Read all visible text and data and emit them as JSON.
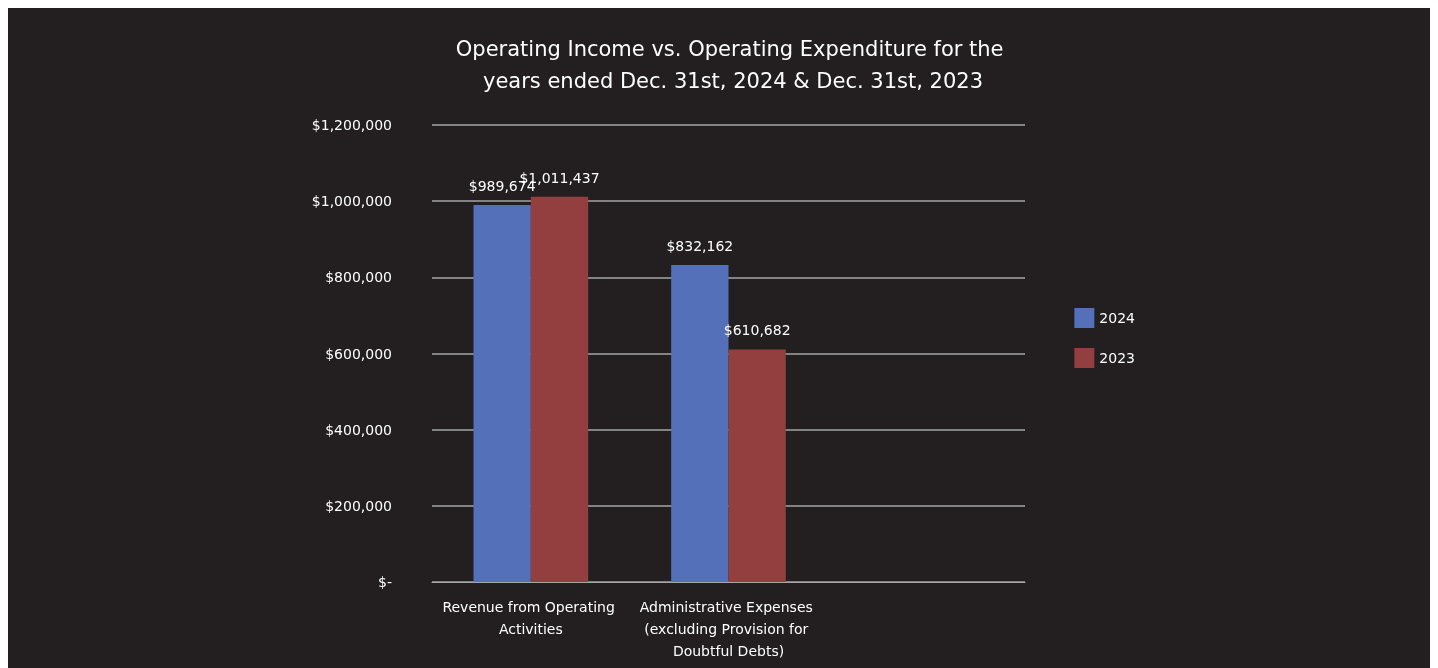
{
  "chart_data": {
    "type": "bar",
    "title": "Operating Income vs. Operating Expenditure for the years ended Dec. 31st, 2024 & Dec. 31st, 2023",
    "categories": [
      "Revenue from Operating Activities",
      "Administrative Expenses (excluding Provision for Doubtful Debts)",
      null
    ],
    "series": [
      {
        "name": "2024",
        "color": "#5470b8",
        "values": [
          989674,
          832162,
          null
        ],
        "value_labels": [
          "$989,674",
          "$832,162",
          null
        ]
      },
      {
        "name": "2023",
        "color": "#943f3f",
        "values": [
          1011437,
          610682,
          null
        ],
        "value_labels": [
          "$1,011,437",
          "$610,682",
          null
        ]
      }
    ],
    "ylim": [
      0,
      1200000
    ],
    "yticks": [
      {
        "value": 0,
        "label": "$-"
      },
      {
        "value": 200000,
        "label": "$200,000"
      },
      {
        "value": 400000,
        "label": "$400,000"
      },
      {
        "value": 600000,
        "label": "$600,000"
      },
      {
        "value": 800000,
        "label": "$800,000"
      },
      {
        "value": 1000000,
        "label": "$1,000,000"
      },
      {
        "value": 1200000,
        "label": "$1,200,000"
      }
    ],
    "grid": "y",
    "legend": "right"
  }
}
